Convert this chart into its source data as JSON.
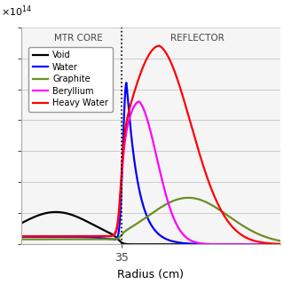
{
  "xlabel": "Radius (cm)",
  "core_boundary": 35,
  "core_label": "MTR CORE",
  "reflector_label": "REFLECTOR",
  "x_min": 0,
  "x_max": 90,
  "y_min": 0,
  "y_max": 3.5,
  "legend": [
    "Void",
    "Water",
    "Graphite",
    "Beryllium",
    "Heavy Water"
  ],
  "colors": [
    "black",
    "blue",
    "#6b8e23",
    "magenta",
    "red"
  ],
  "background_color": "#f5f5f5",
  "exponent_label": "$\\times 10^{14}$"
}
